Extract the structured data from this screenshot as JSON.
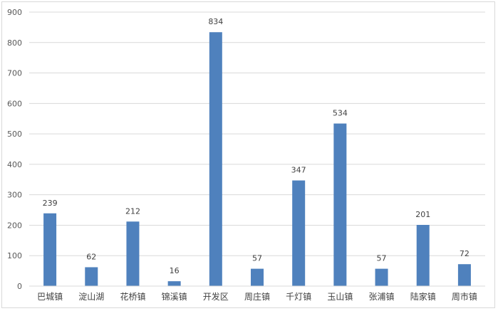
{
  "chart_data": {
    "type": "bar",
    "categories": [
      "巴城镇",
      "淀山湖",
      "花桥镇",
      "锦溪镇",
      "开发区",
      "周庄镇",
      "千灯镇",
      "玉山镇",
      "张浦镇",
      "陆家镇",
      "周市镇"
    ],
    "values": [
      239,
      62,
      212,
      16,
      834,
      57,
      347,
      534,
      57,
      201,
      72
    ],
    "data_labels": [
      "239",
      "62",
      "212",
      "16",
      "834",
      "57",
      "347",
      "534",
      "57",
      "201",
      "72"
    ],
    "y_ticks": [
      "0",
      "100",
      "200",
      "300",
      "400",
      "500",
      "600",
      "700",
      "800",
      "900"
    ],
    "ylim": [
      0,
      900
    ],
    "grid": true,
    "legend": "none",
    "bar_color": "#4f81bd",
    "grid_color": "#d9d9d9"
  }
}
